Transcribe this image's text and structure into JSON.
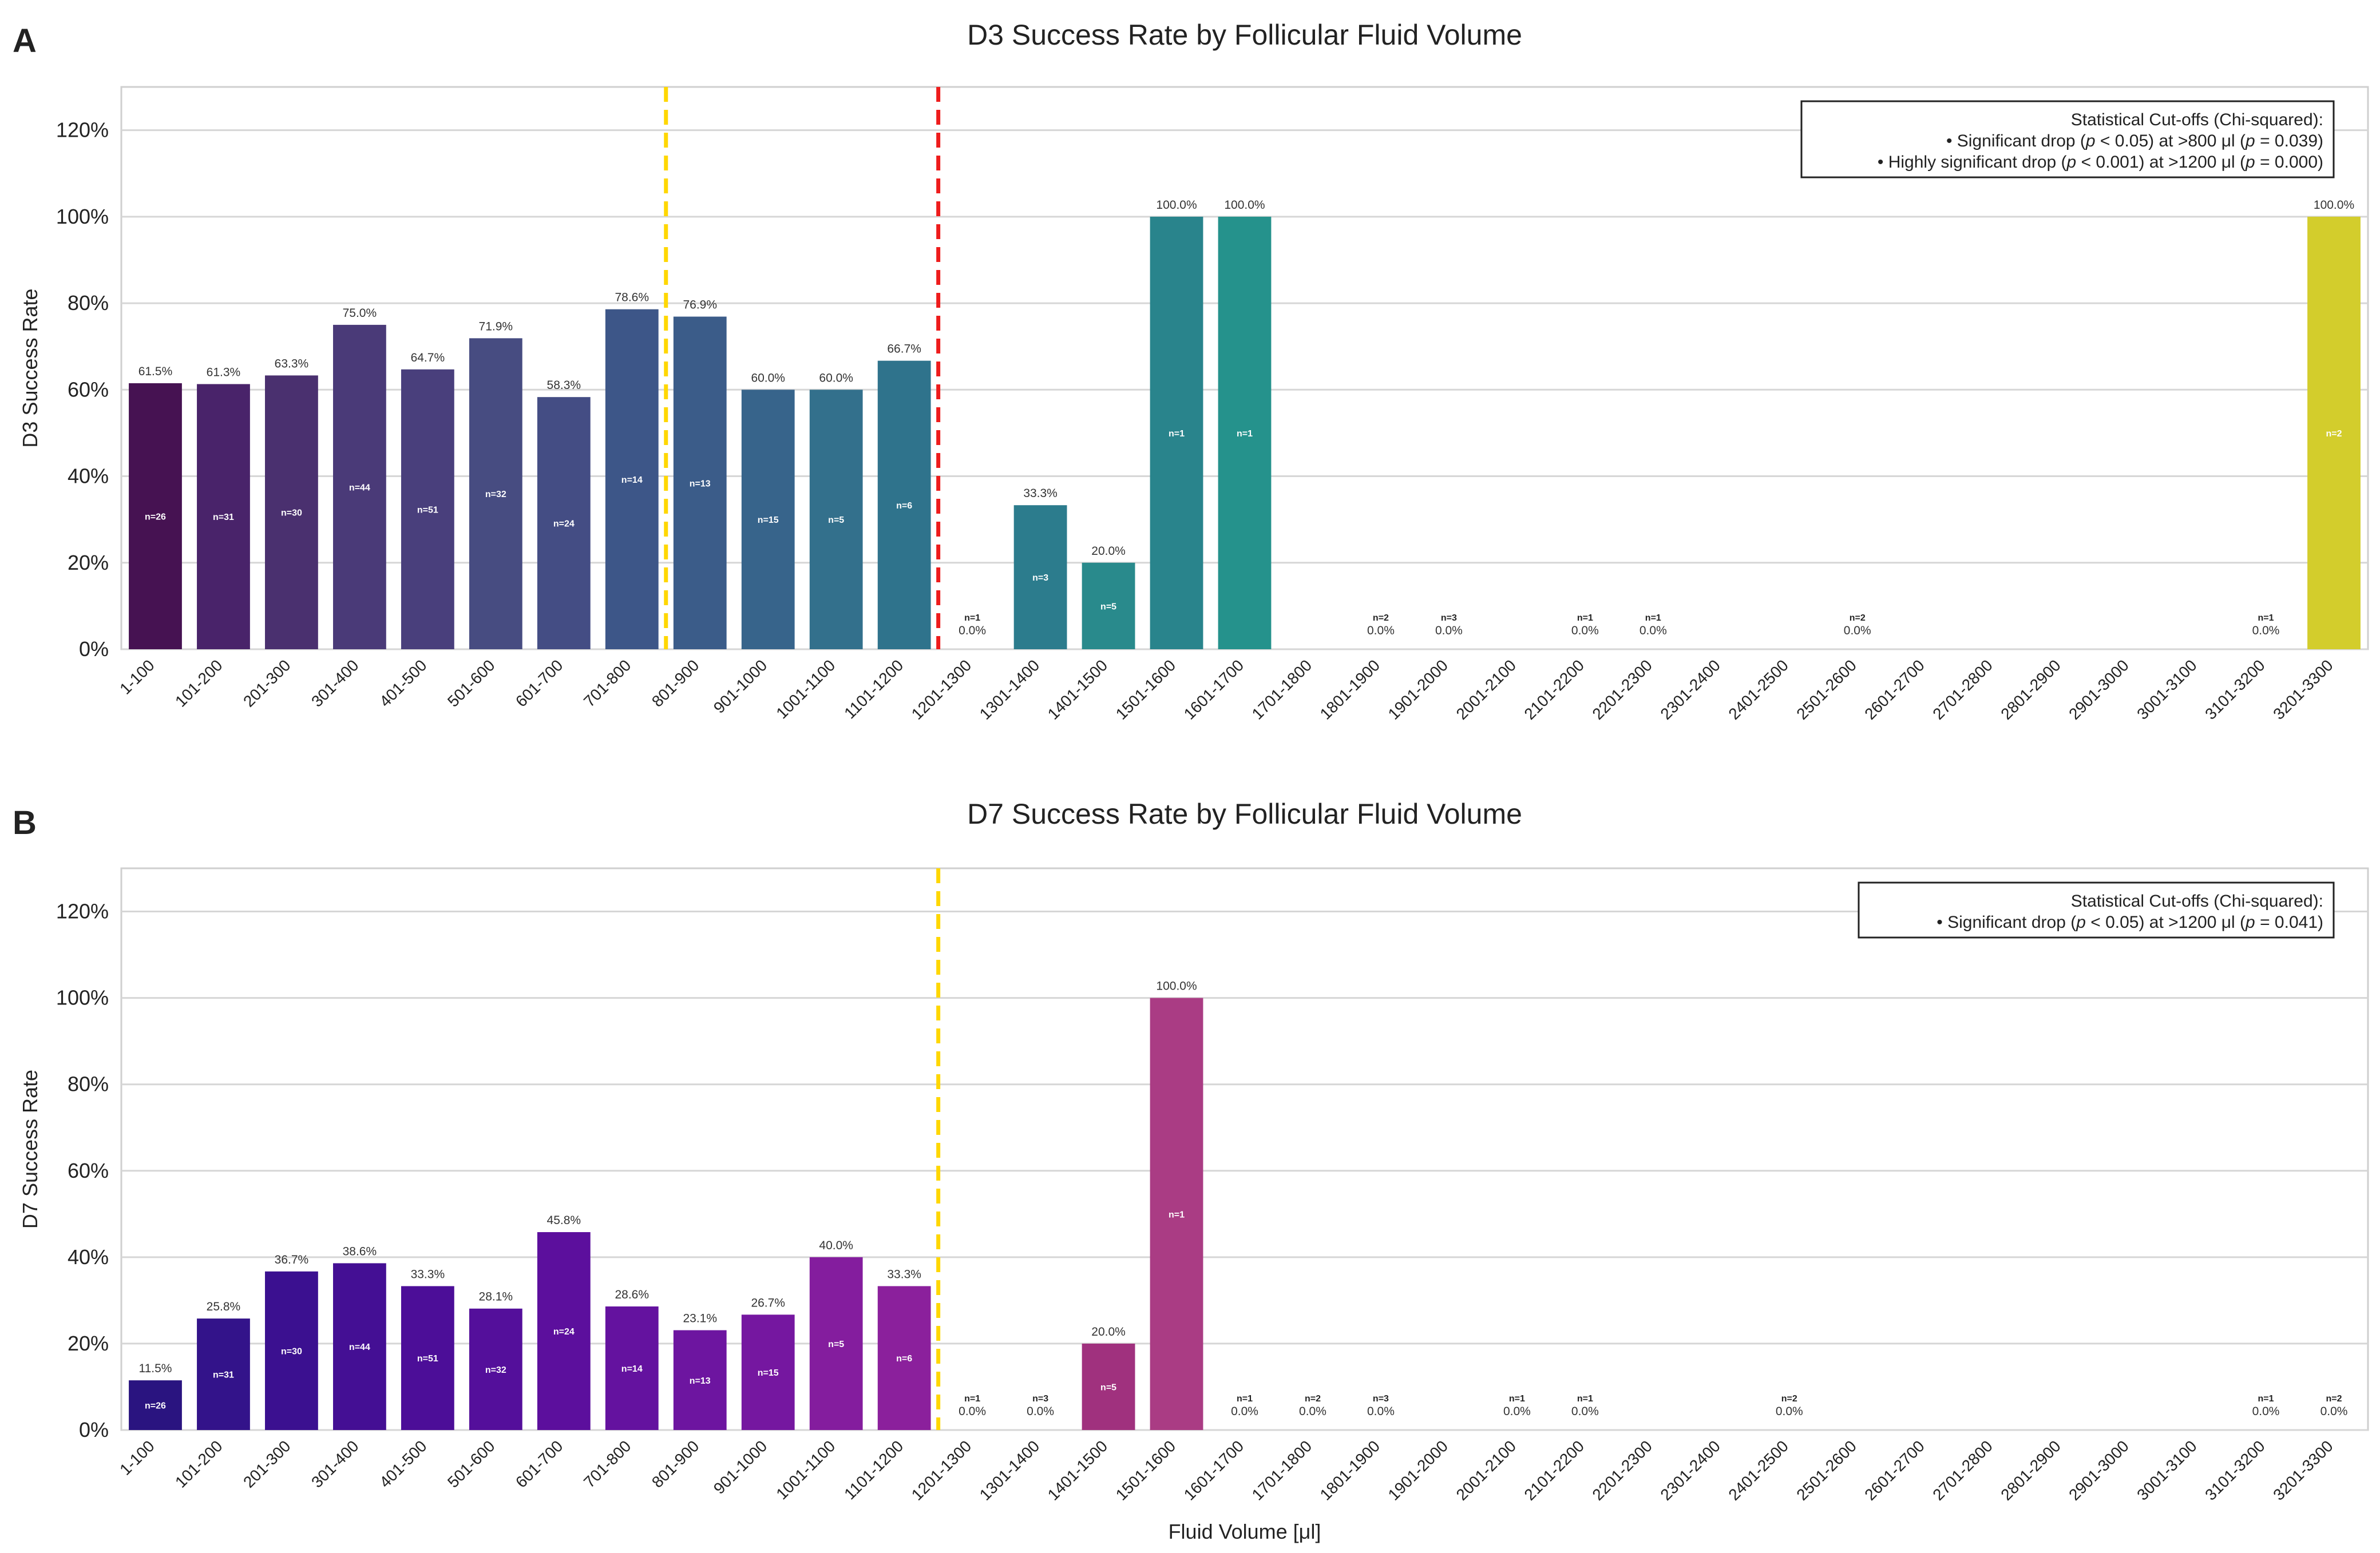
{
  "panels": [
    {
      "letter": "A",
      "chart_data": {
        "type": "bar",
        "title": "D3 Success Rate by Follicular Fluid Volume",
        "xlabel": "",
        "ylabel": "D3 Success Rate",
        "ylim": [
          0,
          130
        ],
        "yticks": [
          "0%",
          "20%",
          "40%",
          "60%",
          "80%",
          "100%",
          "120%"
        ],
        "grid": true,
        "categories": [
          "1-100",
          "101-200",
          "201-300",
          "301-400",
          "401-500",
          "501-600",
          "601-700",
          "701-800",
          "801-900",
          "901-1000",
          "1001-1100",
          "1101-1200",
          "1201-1300",
          "1301-1400",
          "1401-1500",
          "1501-1600",
          "1601-1700",
          "1701-1800",
          "1801-1900",
          "1901-2000",
          "2001-2100",
          "2101-2200",
          "2201-2300",
          "2301-2400",
          "2401-2500",
          "2501-2600",
          "2601-2700",
          "2701-2800",
          "2801-2900",
          "2901-3000",
          "3001-3100",
          "3101-3200",
          "3201-3300"
        ],
        "values": [
          61.5,
          61.3,
          63.3,
          75.0,
          64.7,
          71.9,
          58.3,
          78.6,
          76.9,
          60.0,
          60.0,
          66.7,
          0.0,
          33.3,
          20.0,
          100.0,
          100.0,
          null,
          0.0,
          0.0,
          null,
          0.0,
          0.0,
          null,
          null,
          0.0,
          null,
          null,
          null,
          null,
          null,
          0.0,
          100.0
        ],
        "value_labels": [
          "61.5%",
          "61.3%",
          "63.3%",
          "75.0%",
          "64.7%",
          "71.9%",
          "58.3%",
          "78.6%",
          "76.9%",
          "60.0%",
          "60.0%",
          "66.7%",
          "0.0%",
          "33.3%",
          "20.0%",
          "100.0%",
          "100.0%",
          "",
          "0.0%",
          "0.0%",
          "",
          "0.0%",
          "0.0%",
          "",
          "",
          "0.0%",
          "",
          "",
          "",
          "",
          "",
          "0.0%",
          "100.0%"
        ],
        "n_labels": [
          "n=26",
          "n=31",
          "n=30",
          "n=44",
          "n=51",
          "n=32",
          "n=24",
          "n=14",
          "n=13",
          "n=15",
          "n=5",
          "n=6",
          "n=1",
          "n=3",
          "n=5",
          "n=1",
          "n=1",
          "",
          "n=2",
          "n=3",
          "",
          "n=1",
          "n=1",
          "",
          "",
          "n=2",
          "",
          "",
          "",
          "",
          "",
          "n=1",
          "n=2"
        ],
        "bar_colors": [
          "#461252",
          "#49236a",
          "#4a306f",
          "#4a3a78",
          "#493f7c",
          "#474c81",
          "#444d84",
          "#3d5688",
          "#3b5c89",
          "#37648b",
          "#33708c",
          "#2f738c",
          "#2c7c8d",
          "#2c7c8d",
          "#298a8c",
          "#29848c",
          "#25928c",
          "#23968b",
          "#1f9e89",
          "#21a685",
          "#28ae80",
          "#35b779",
          "#47c06f",
          "#5cc863",
          "#73d056",
          "#8bd646",
          "#a2da37",
          "#bade28",
          "#d1e21b",
          "#d3cd2c",
          "#d3cd2c",
          "#d3cd2c",
          "#d3cd2c"
        ],
        "cutoff_lines": [
          {
            "after_category": "701-800",
            "color": "#ffd700"
          },
          {
            "after_category": "1101-1200",
            "color": "#ee1c1c"
          }
        ],
        "legend": {
          "position": "top-right",
          "title": "Statistical Cut-offs (Chi-squared):",
          "items": [
            {
              "prefix": "• Significant drop (",
              "p1": "p",
              "mid": " < 0.05) at >800 μl (",
              "p2": "p",
              "suffix": " = 0.039)"
            },
            {
              "prefix": "• Highly significant drop (",
              "p1": "p",
              "mid": " < 0.001) at >1200 μl (",
              "p2": "p",
              "suffix": " = 0.000)"
            }
          ]
        }
      }
    },
    {
      "letter": "B",
      "chart_data": {
        "type": "bar",
        "title": "D7 Success Rate by Follicular Fluid Volume",
        "xlabel": "Fluid Volume [μl]",
        "ylabel": "D7 Success Rate",
        "ylim": [
          0,
          130
        ],
        "yticks": [
          "0%",
          "20%",
          "40%",
          "60%",
          "80%",
          "100%",
          "120%"
        ],
        "grid": true,
        "categories": [
          "1-100",
          "101-200",
          "201-300",
          "301-400",
          "401-500",
          "501-600",
          "601-700",
          "701-800",
          "801-900",
          "901-1000",
          "1001-1100",
          "1101-1200",
          "1201-1300",
          "1301-1400",
          "1401-1500",
          "1501-1600",
          "1601-1700",
          "1701-1800",
          "1801-1900",
          "1901-2000",
          "2001-2100",
          "2101-2200",
          "2201-2300",
          "2301-2400",
          "2401-2500",
          "2501-2600",
          "2601-2700",
          "2701-2800",
          "2801-2900",
          "2901-3000",
          "3001-3100",
          "3101-3200",
          "3201-3300"
        ],
        "values": [
          11.5,
          25.8,
          36.7,
          38.6,
          33.3,
          28.1,
          45.8,
          28.6,
          23.1,
          26.7,
          40.0,
          33.3,
          0.0,
          0.0,
          20.0,
          100.0,
          0.0,
          0.0,
          0.0,
          null,
          0.0,
          0.0,
          null,
          null,
          0.0,
          null,
          null,
          null,
          null,
          null,
          null,
          0.0,
          0.0
        ],
        "value_labels": [
          "11.5%",
          "25.8%",
          "36.7%",
          "38.6%",
          "33.3%",
          "28.1%",
          "45.8%",
          "28.6%",
          "23.1%",
          "26.7%",
          "40.0%",
          "33.3%",
          "0.0%",
          "0.0%",
          "20.0%",
          "100.0%",
          "0.0%",
          "0.0%",
          "0.0%",
          "",
          "0.0%",
          "0.0%",
          "",
          "",
          "0.0%",
          "",
          "",
          "",
          "",
          "",
          "",
          "0.0%",
          "0.0%"
        ],
        "n_labels": [
          "n=26",
          "n=31",
          "n=30",
          "n=44",
          "n=51",
          "n=32",
          "n=24",
          "n=14",
          "n=13",
          "n=15",
          "n=5",
          "n=6",
          "n=1",
          "n=3",
          "n=5",
          "n=1",
          "n=1",
          "n=2",
          "n=3",
          "",
          "n=1",
          "n=1",
          "",
          "",
          "n=2",
          "",
          "",
          "",
          "",
          "",
          "",
          "n=1",
          "n=2"
        ],
        "bar_colors": [
          "#2a1480",
          "#33138a",
          "#3b1090",
          "#440f94",
          "#4c0e98",
          "#540f9b",
          "#5c0f9d",
          "#64129f",
          "#6d15a0",
          "#7517a0",
          "#841d9e",
          "#8b209c",
          "#902499",
          "#962996",
          "#a0317e",
          "#aa3c84",
          "#b44784",
          "#bc517f",
          "#c45b78",
          "#cb6571",
          "#d16f6a",
          "#d77963",
          "#dd835c",
          "#e28e55",
          "#e7994e",
          "#eba447",
          "#eeb040",
          "#f1bc39",
          "#f3c833",
          "#f4d52e",
          "#f4e12a",
          "#f3ee27",
          "#f0f921"
        ],
        "cutoff_lines": [
          {
            "after_category": "1101-1200",
            "color": "#ffd700"
          }
        ],
        "legend": {
          "position": "top-right",
          "title": "Statistical Cut-offs (Chi-squared):",
          "items": [
            {
              "prefix": "• Significant drop (",
              "p1": "p",
              "mid": " < 0.05) at >1200 μl (",
              "p2": "p",
              "suffix": " = 0.041)"
            }
          ]
        }
      }
    }
  ]
}
